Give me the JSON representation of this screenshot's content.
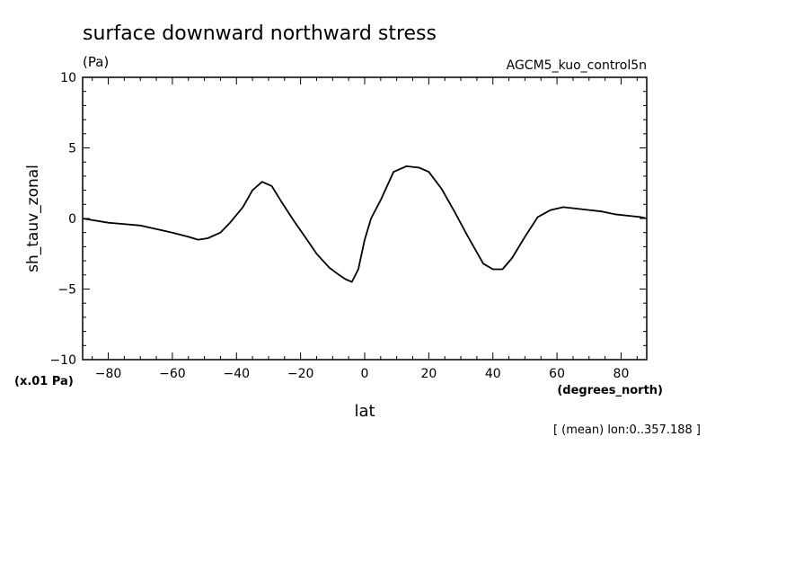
{
  "chart_data": {
    "type": "line",
    "title": "surface downward northward stress",
    "units": "(Pa)",
    "dataset": "AGCM5_kuo_control5n",
    "ylabel": "sh_tauv_zonal",
    "yscale_note": "(x.01 Pa)",
    "xlabel": "lat",
    "xunits": "(degrees_north)",
    "footnote": "[ (mean) lon:0..357.188 ]",
    "xlim": [
      -88,
      88
    ],
    "ylim": [
      -10,
      10
    ],
    "xticks": [
      "-80",
      "-60",
      "-40",
      "-20",
      "0",
      "20",
      "40",
      "60",
      "80"
    ],
    "yticks": [
      "10",
      "5",
      "0",
      "-5",
      "-10"
    ],
    "grid": false,
    "series": [
      {
        "x": [
          -88,
          -80,
          -70,
          -66,
          -60,
          -55,
          -52,
          -49,
          -45,
          -42,
          -38,
          -35,
          -32,
          -29,
          -26,
          -22,
          -18,
          -15,
          -11,
          -8,
          -6,
          -4,
          -2,
          0,
          2,
          5,
          9,
          13,
          17,
          20,
          24,
          28,
          32,
          37,
          40,
          43,
          46,
          50,
          54,
          58,
          62,
          66,
          70,
          74,
          78,
          82,
          86,
          88
        ],
        "y": [
          0.0,
          -0.3,
          -0.5,
          -0.7,
          -1.0,
          -1.3,
          -1.5,
          -1.4,
          -1.0,
          -0.3,
          0.8,
          2.0,
          2.6,
          2.3,
          1.2,
          -0.2,
          -1.5,
          -2.5,
          -3.5,
          -4.0,
          -4.3,
          -4.5,
          -3.6,
          -1.5,
          0.0,
          1.3,
          3.3,
          3.7,
          3.6,
          3.3,
          2.1,
          0.5,
          -1.2,
          -3.2,
          -3.6,
          -3.6,
          -2.8,
          -1.3,
          0.1,
          0.6,
          0.8,
          0.7,
          0.6,
          0.5,
          0.3,
          0.2,
          0.1,
          0.0
        ]
      }
    ]
  }
}
